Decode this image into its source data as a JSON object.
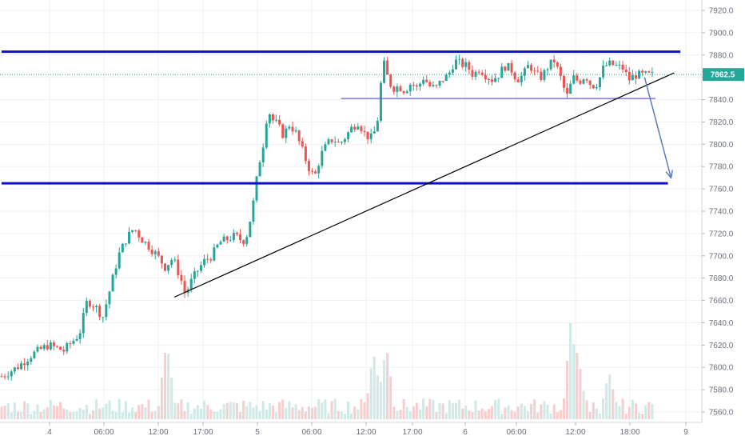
{
  "colors": {
    "up": "#26a69a",
    "down": "#ef5350",
    "up_volume": "#cfe9e6",
    "down_volume": "#f5cfcf",
    "grid": "#eef0f3",
    "axis_text": "#6b6f7a",
    "level": "#1010c8",
    "range_low": "#6d5fd0",
    "trendline": "#000000",
    "arrow": "#5a7bc4",
    "last_price_line": "#26a69a"
  },
  "chart_data": {
    "type": "candlestick",
    "title": "",
    "xlabel": "",
    "ylabel": "",
    "ylim": [
      7550,
      7930
    ],
    "y_ticks": [
      "7920.0",
      "7900.0",
      "7880.0",
      "7860.0",
      "7840.0",
      "7820.0",
      "7800.0",
      "7780.0",
      "7760.0",
      "7740.0",
      "7720.0",
      "7700.0",
      "7680.0",
      "7660.0",
      "7640.0",
      "7620.0",
      "7600.0",
      "7580.0",
      "7560.0"
    ],
    "x_ticks": [
      "4",
      "06:00",
      "12:00",
      "17:00",
      "5",
      "06:00",
      "12:00",
      "17:00",
      "6",
      "06:00",
      "12:00",
      "18:00",
      "9"
    ],
    "last_price": "7862.5",
    "last_price_value": 7862.5,
    "candles_count": 200,
    "close_path": [
      [
        0,
        7592
      ],
      [
        10,
        7600
      ],
      [
        20,
        7612
      ],
      [
        30,
        7620
      ],
      [
        40,
        7615
      ],
      [
        50,
        7630
      ],
      [
        55,
        7660
      ],
      [
        60,
        7655
      ],
      [
        65,
        7645
      ],
      [
        70,
        7672
      ],
      [
        75,
        7700
      ],
      [
        80,
        7715
      ],
      [
        85,
        7725
      ],
      [
        90,
        7715
      ],
      [
        95,
        7708
      ],
      [
        100,
        7700
      ],
      [
        105,
        7690
      ],
      [
        110,
        7698
      ],
      [
        115,
        7680
      ],
      [
        118,
        7665
      ],
      [
        121,
        7675
      ],
      [
        125,
        7685
      ],
      [
        130,
        7695
      ],
      [
        135,
        7700
      ],
      [
        140,
        7712
      ],
      [
        145,
        7715
      ],
      [
        150,
        7718
      ],
      [
        155,
        7713
      ],
      [
        158,
        7720
      ],
      [
        162,
        7750
      ],
      [
        165,
        7780
      ],
      [
        168,
        7800
      ],
      [
        171,
        7832
      ],
      [
        174,
        7822
      ],
      [
        177,
        7818
      ],
      [
        181,
        7808
      ],
      [
        185,
        7818
      ],
      [
        189,
        7810
      ],
      [
        193,
        7795
      ],
      [
        197,
        7780
      ],
      [
        201,
        7770
      ],
      [
        205,
        7790
      ],
      [
        209,
        7800
      ],
      [
        213,
        7805
      ],
      [
        217,
        7800
      ],
      [
        221,
        7807
      ],
      [
        225,
        7815
      ],
      [
        229,
        7820
      ],
      [
        233,
        7810
      ],
      [
        237,
        7805
      ],
      [
        241,
        7815
      ],
      [
        243,
        7845
      ],
      [
        245,
        7875
      ],
      [
        248,
        7860
      ],
      [
        251,
        7850
      ],
      [
        255,
        7852
      ],
      [
        259,
        7848
      ],
      [
        263,
        7855
      ],
      [
        267,
        7850
      ],
      [
        271,
        7860
      ],
      [
        275,
        7852
      ],
      [
        279,
        7850
      ],
      [
        283,
        7858
      ],
      [
        287,
        7862
      ],
      [
        291,
        7875
      ],
      [
        295,
        7872
      ],
      [
        299,
        7870
      ],
      [
        303,
        7862
      ],
      [
        307,
        7868
      ],
      [
        311,
        7862
      ],
      [
        315,
        7858
      ],
      [
        319,
        7862
      ],
      [
        323,
        7870
      ],
      [
        327,
        7868
      ],
      [
        331,
        7858
      ],
      [
        335,
        7862
      ],
      [
        339,
        7872
      ],
      [
        343,
        7862
      ],
      [
        347,
        7860
      ],
      [
        351,
        7870
      ],
      [
        355,
        7875
      ],
      [
        359,
        7860
      ],
      [
        363,
        7842
      ],
      [
        367,
        7860
      ],
      [
        371,
        7856
      ],
      [
        375,
        7862
      ],
      [
        379,
        7852
      ],
      [
        383,
        7855
      ],
      [
        387,
        7870
      ],
      [
        391,
        7872
      ],
      [
        395,
        7870
      ],
      [
        399,
        7868
      ],
      [
        403,
        7858
      ],
      [
        407,
        7862
      ]
    ],
    "volume_spikes": [
      {
        "x": 106,
        "v": 0.7
      },
      {
        "x": 239,
        "v": 0.62
      },
      {
        "x": 247,
        "v": 0.7
      },
      {
        "x": 366,
        "v": 0.95
      },
      {
        "x": 370,
        "v": 0.65
      },
      {
        "x": 390,
        "v": 0.4
      }
    ],
    "annotations": {
      "horizontal_lines": [
        {
          "price": 7883,
          "x_from": 0,
          "x_to": 436,
          "style": "level"
        },
        {
          "price": 7765,
          "x_from": 0,
          "x_to": 428,
          "style": "level"
        },
        {
          "price": 7841,
          "x_from": 218,
          "x_to": 420,
          "style": "range_low"
        }
      ],
      "trendline": {
        "from": [
          111,
          7663
        ],
        "to": [
          432,
          7864
        ]
      },
      "arrow": {
        "from": [
          413,
          7860
        ],
        "to": [
          430,
          7770
        ]
      }
    }
  }
}
